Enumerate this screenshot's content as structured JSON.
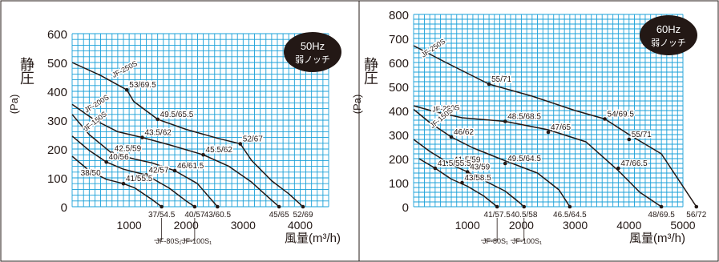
{
  "colors": {
    "plot_bg": "#ffffff",
    "grid": "#1aa0d8",
    "curve": "#231815",
    "badge_bg": "#231815",
    "badge_text": "#ffffff",
    "frame": "#231815"
  },
  "chart_data": [
    {
      "type": "line",
      "badge": [
        "50Hz",
        "弱ノッチ"
      ],
      "ylabel": [
        "静",
        "圧",
        "(Pa)"
      ],
      "xlabel": "風量(m³/h)",
      "xlim": [
        0,
        4500
      ],
      "ylim": [
        0,
        600
      ],
      "xticks": [
        1000,
        2000,
        3000,
        4000
      ],
      "yticks": [
        0,
        100,
        200,
        300,
        400,
        500,
        600
      ],
      "grid": true,
      "series": [
        {
          "name": "JF-250S",
          "label_at": [
            730,
            447
          ],
          "label_rot": -28,
          "points": [
            [
              0,
              500
            ],
            [
              500,
              455
            ],
            [
              960,
              405
            ],
            [
              1080,
              365
            ],
            [
              1500,
              303
            ],
            [
              2000,
              268
            ],
            [
              2560,
              237
            ],
            [
              2950,
              218
            ],
            [
              3150,
              160
            ],
            [
              3500,
              90
            ],
            [
              3800,
              45
            ],
            [
              4050,
              0
            ]
          ],
          "markers": [
            [
              960,
              405,
              "53/69.5"
            ],
            [
              1500,
              303,
              "49.5/65.5"
            ],
            [
              2950,
              218,
              "52/67"
            ],
            [
              4050,
              0,
              "52/69"
            ]
          ]
        },
        {
          "name": "JF-200S",
          "label_at": [
            250,
            325
          ],
          "label_rot": -32,
          "points": [
            [
              0,
              355
            ],
            [
              400,
              300
            ],
            [
              800,
              260
            ],
            [
              1230,
              240
            ],
            [
              1700,
              215
            ],
            [
              2300,
              180
            ],
            [
              2750,
              140
            ],
            [
              3150,
              85
            ],
            [
              3400,
              40
            ],
            [
              3630,
              0
            ]
          ],
          "markers": [
            [
              1230,
              240,
              "43.5/62"
            ],
            [
              2300,
              180,
              "45.5/62"
            ],
            [
              3630,
              0,
              "45/65"
            ]
          ]
        },
        {
          "name": "JF-150S",
          "label_at": [
            240,
            260
          ],
          "label_rot": -38,
          "points": [
            [
              0,
              320
            ],
            [
              300,
              250
            ],
            [
              700,
              185
            ],
            [
              1100,
              165
            ],
            [
              1400,
              152
            ],
            [
              1800,
              125
            ],
            [
              2200,
              80
            ],
            [
              2550,
              0
            ]
          ],
          "markers": [
            [
              700,
              185,
              "42.5/59"
            ],
            [
              1800,
              125,
              "46/61.5"
            ],
            [
              2550,
              0,
              "43/60.5"
            ]
          ]
        },
        {
          "name": "JF-100S1",
          "callout": "JF-100S₁",
          "callout_x": 1900,
          "points": [
            [
              0,
              245
            ],
            [
              300,
              195
            ],
            [
              600,
              155
            ],
            [
              900,
              130
            ],
            [
              1300,
              110
            ],
            [
              1700,
              65
            ],
            [
              2000,
              20
            ],
            [
              2150,
              0
            ]
          ],
          "markers": [
            [
              600,
              155,
              "40/56"
            ],
            [
              1300,
              110,
              "42/57"
            ],
            [
              2150,
              0,
              "40/57"
            ]
          ]
        },
        {
          "name": "JF-80S1",
          "callout": "JF-80S₁",
          "callout_x": 1440,
          "points": [
            [
              0,
              175
            ],
            [
              300,
              125
            ],
            [
              600,
              95
            ],
            [
              900,
              80
            ],
            [
              1100,
              65
            ],
            [
              1400,
              25
            ],
            [
              1570,
              0
            ]
          ],
          "markers": [
            [
              900,
              80,
              "41/55.5"
            ],
            [
              1570,
              0,
              "37/54.5"
            ]
          ]
        }
      ],
      "point_labels": [
        {
          "text": "38/50",
          "x": 150,
          "y": 100
        }
      ]
    },
    {
      "type": "line",
      "badge": [
        "60Hz",
        "弱ノッチ"
      ],
      "ylabel": [
        "静",
        "圧",
        "(Pa)"
      ],
      "xlabel": "風量(m³/h)",
      "xlim": [
        0,
        5000
      ],
      "ylim": [
        0,
        800
      ],
      "xticks": [
        1000,
        2000,
        3000,
        4000,
        5000
      ],
      "yticks": [
        0,
        100,
        200,
        300,
        400,
        500,
        600,
        700,
        800
      ],
      "grid": true,
      "series": [
        {
          "name": "JF-250S",
          "label_at": [
            180,
            620
          ],
          "label_rot": -34,
          "points": [
            [
              0,
              670
            ],
            [
              600,
              600
            ],
            [
              1400,
              510
            ],
            [
              2200,
              460
            ],
            [
              3000,
              400
            ],
            [
              3550,
              365
            ],
            [
              4000,
              300
            ],
            [
              4600,
              220
            ],
            [
              5250,
              0
            ]
          ],
          "markers": [
            [
              1400,
              510,
              "55/71"
            ],
            [
              3550,
              365,
              "54/69.5"
            ],
            [
              4000,
              280,
              "55/71"
            ],
            [
              5250,
              0,
              "56/72"
            ]
          ]
        },
        {
          "name": "JF-200S",
          "label_at": [
            350,
            395
          ],
          "label_rot": -4,
          "points": [
            [
              0,
              420
            ],
            [
              400,
              395
            ],
            [
              900,
              370
            ],
            [
              1700,
              355
            ],
            [
              2500,
              320
            ],
            [
              3200,
              270
            ],
            [
              3800,
              150
            ],
            [
              4200,
              60
            ],
            [
              4600,
              0
            ]
          ],
          "markers": [
            [
              1700,
              355,
              "48.5/68.5"
            ],
            [
              2500,
              310,
              "47/65"
            ],
            [
              3800,
              160,
              "47/66.5"
            ],
            [
              4600,
              0,
              "48/69.5"
            ]
          ]
        },
        {
          "name": "JF-150S",
          "label_at": [
            350,
            325
          ],
          "label_rot": -40,
          "points": [
            [
              0,
              405
            ],
            [
              300,
              350
            ],
            [
              700,
              290
            ],
            [
              1100,
              245
            ],
            [
              1600,
              200
            ],
            [
              2300,
              140
            ],
            [
              2700,
              70
            ],
            [
              2900,
              0
            ]
          ],
          "markers": [
            [
              700,
              290,
              "46/62"
            ],
            [
              1700,
              180,
              "49.5/64.5"
            ],
            [
              2900,
              0,
              "46.5/64.5"
            ]
          ]
        },
        {
          "name": "JF-100S1",
          "callout": "JF-100S₁",
          "callout_x": 1800,
          "points": [
            [
              0,
              280
            ],
            [
              300,
              230
            ],
            [
              700,
              175
            ],
            [
              1000,
              145
            ],
            [
              1300,
              110
            ],
            [
              1700,
              65
            ],
            [
              1950,
              20
            ],
            [
              2050,
              0
            ]
          ],
          "markers": [
            [
              700,
              175,
              "41.5/59"
            ],
            [
              1000,
              145,
              "43/59"
            ],
            [
              2050,
              0,
              "40.5/58"
            ]
          ]
        },
        {
          "name": "JF-80S1",
          "callout": "JF-80S₁",
          "callout_x": 1250,
          "points": [
            [
              100,
              200
            ],
            [
              400,
              160
            ],
            [
              700,
              115
            ],
            [
              1000,
              85
            ],
            [
              1300,
              45
            ],
            [
              1550,
              0
            ]
          ],
          "markers": [
            [
              400,
              160,
              "41.5/55.5"
            ],
            [
              900,
              100,
              "43/58.5"
            ],
            [
              1550,
              0,
              "41/57.5"
            ]
          ]
        }
      ],
      "point_labels": []
    }
  ]
}
